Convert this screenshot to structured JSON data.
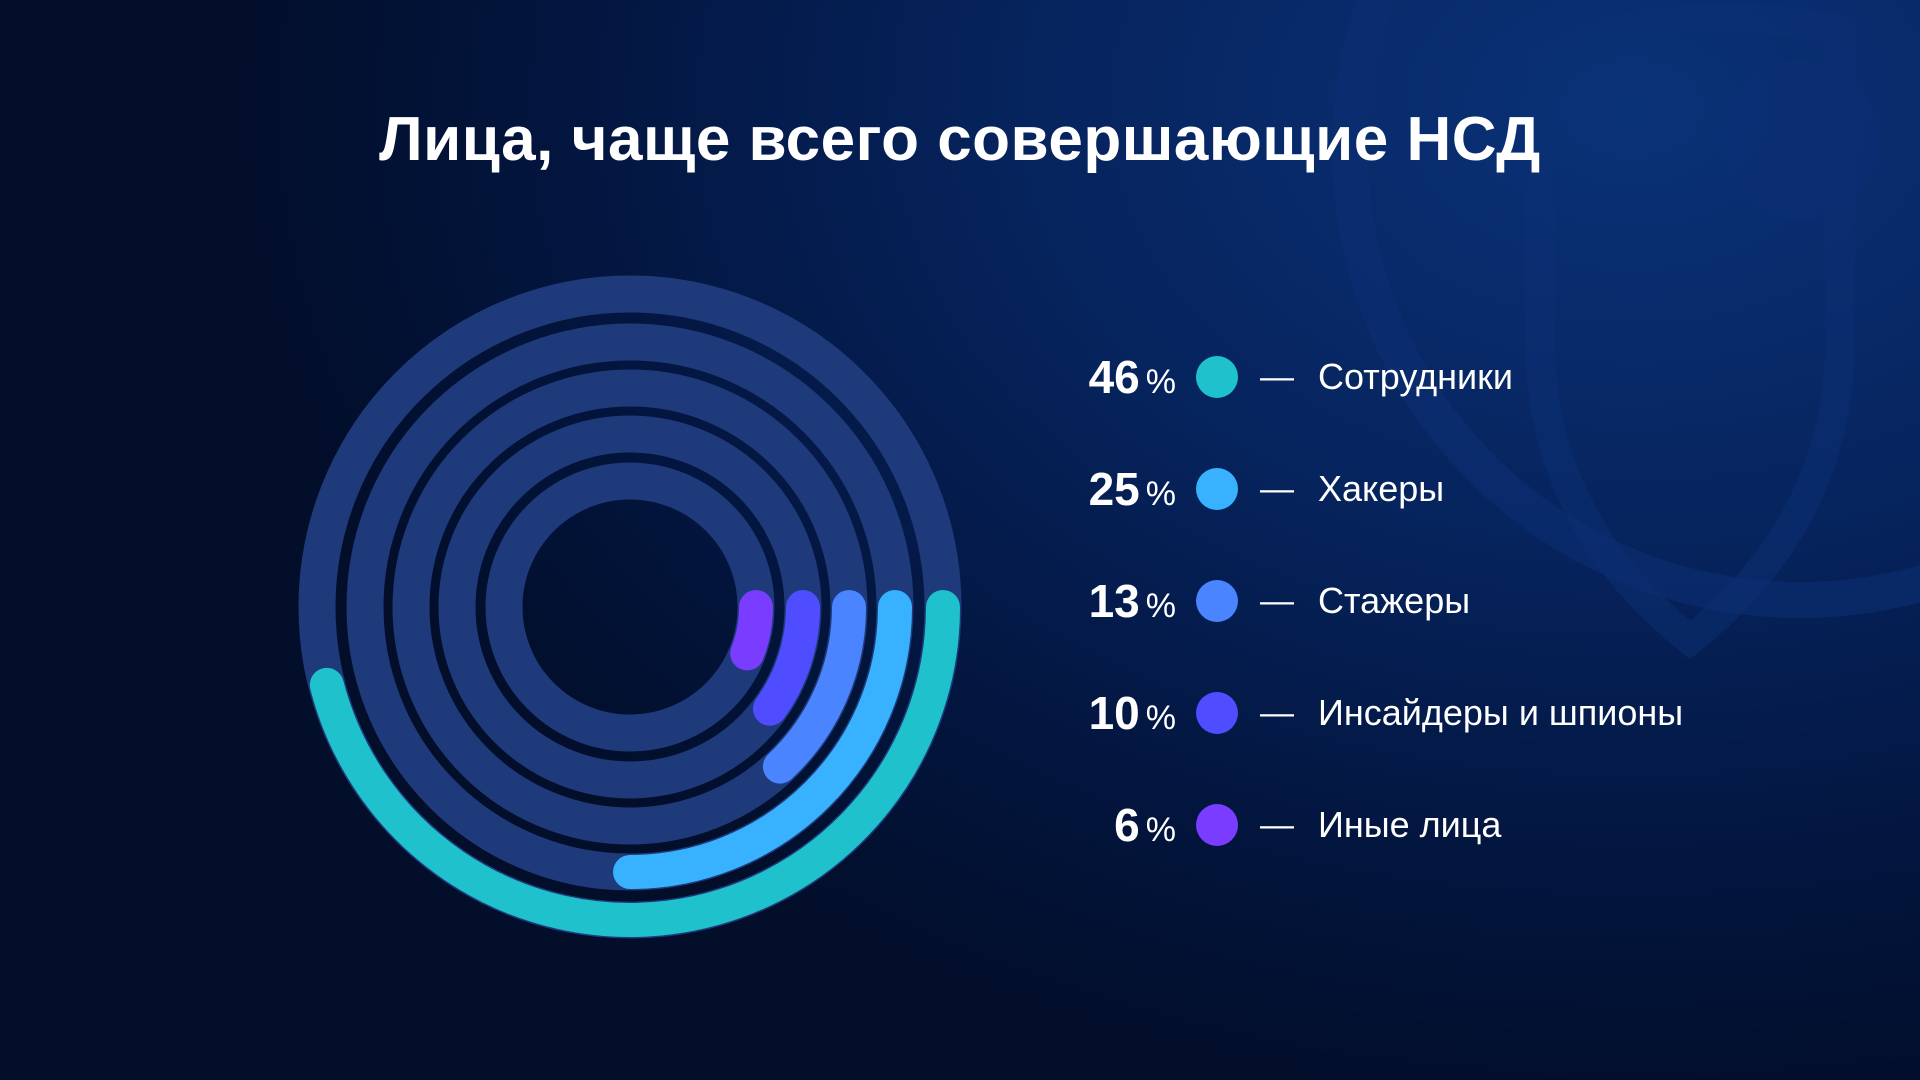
{
  "title": "Лица, чаще всего совершающие НСД",
  "colors": {
    "track": "#1f3a7a",
    "background_start": "#0a3278",
    "background_end": "#020e2a"
  },
  "chart_data": {
    "type": "pie",
    "style": "radial-bar",
    "title": "Лица, чаще всего совершающие НСД",
    "unit": "%",
    "categories": [
      "Сотрудники",
      "Хакеры",
      "Стажеры",
      "Инсайдеры и шпионы",
      "Иные лица"
    ],
    "values": [
      46,
      25,
      13,
      10,
      6
    ],
    "series_colors": [
      "#1fc1cc",
      "#38b2ff",
      "#4b84ff",
      "#4f4dff",
      "#7a3cff"
    ],
    "legend_position": "right"
  },
  "legend": [
    {
      "value": "46",
      "sign": "%",
      "dash": "—",
      "label": "Сотрудники",
      "color": "#1fc1cc"
    },
    {
      "value": "25",
      "sign": "%",
      "dash": "—",
      "label": "Хакеры",
      "color": "#38b2ff"
    },
    {
      "value": "13",
      "sign": "%",
      "dash": "—",
      "label": "Стажеры",
      "color": "#4b84ff"
    },
    {
      "value": "10",
      "sign": "%",
      "dash": "—",
      "label": "Инсайдеры и шпионы",
      "color": "#4f4dff"
    },
    {
      "value": "6",
      "sign": "%",
      "dash": "—",
      "label": "Иные лица",
      "color": "#7a3cff"
    }
  ]
}
